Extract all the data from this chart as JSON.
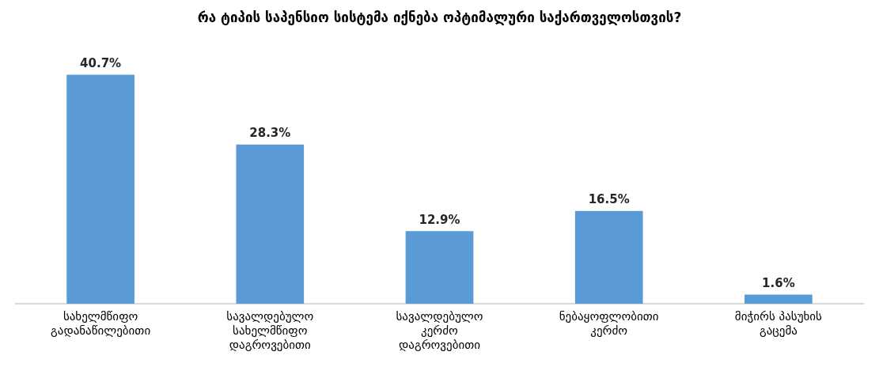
{
  "chart_data": {
    "type": "bar",
    "title": "რა ტიპის საპენსიო სისტემა იქნება ოპტიმალური საქართველოსთვის?",
    "categories": [
      "სახელმწიფო გადანაწილებითი",
      "სავალდებულო სახელმწიფო დაგროვებითი",
      "სავალდებულო კერძო დაგროვებითი",
      "ნებაყოფლობითი კერძო",
      "მიჭირს პასუხის გაცემა"
    ],
    "values": [
      40.7,
      28.3,
      12.9,
      16.5,
      1.6
    ],
    "value_labels": [
      "40.7%",
      "28.3%",
      "12.9%",
      "16.5%",
      "1.6%"
    ],
    "color": "#5b9bd5",
    "grid": false,
    "legend": false
  }
}
